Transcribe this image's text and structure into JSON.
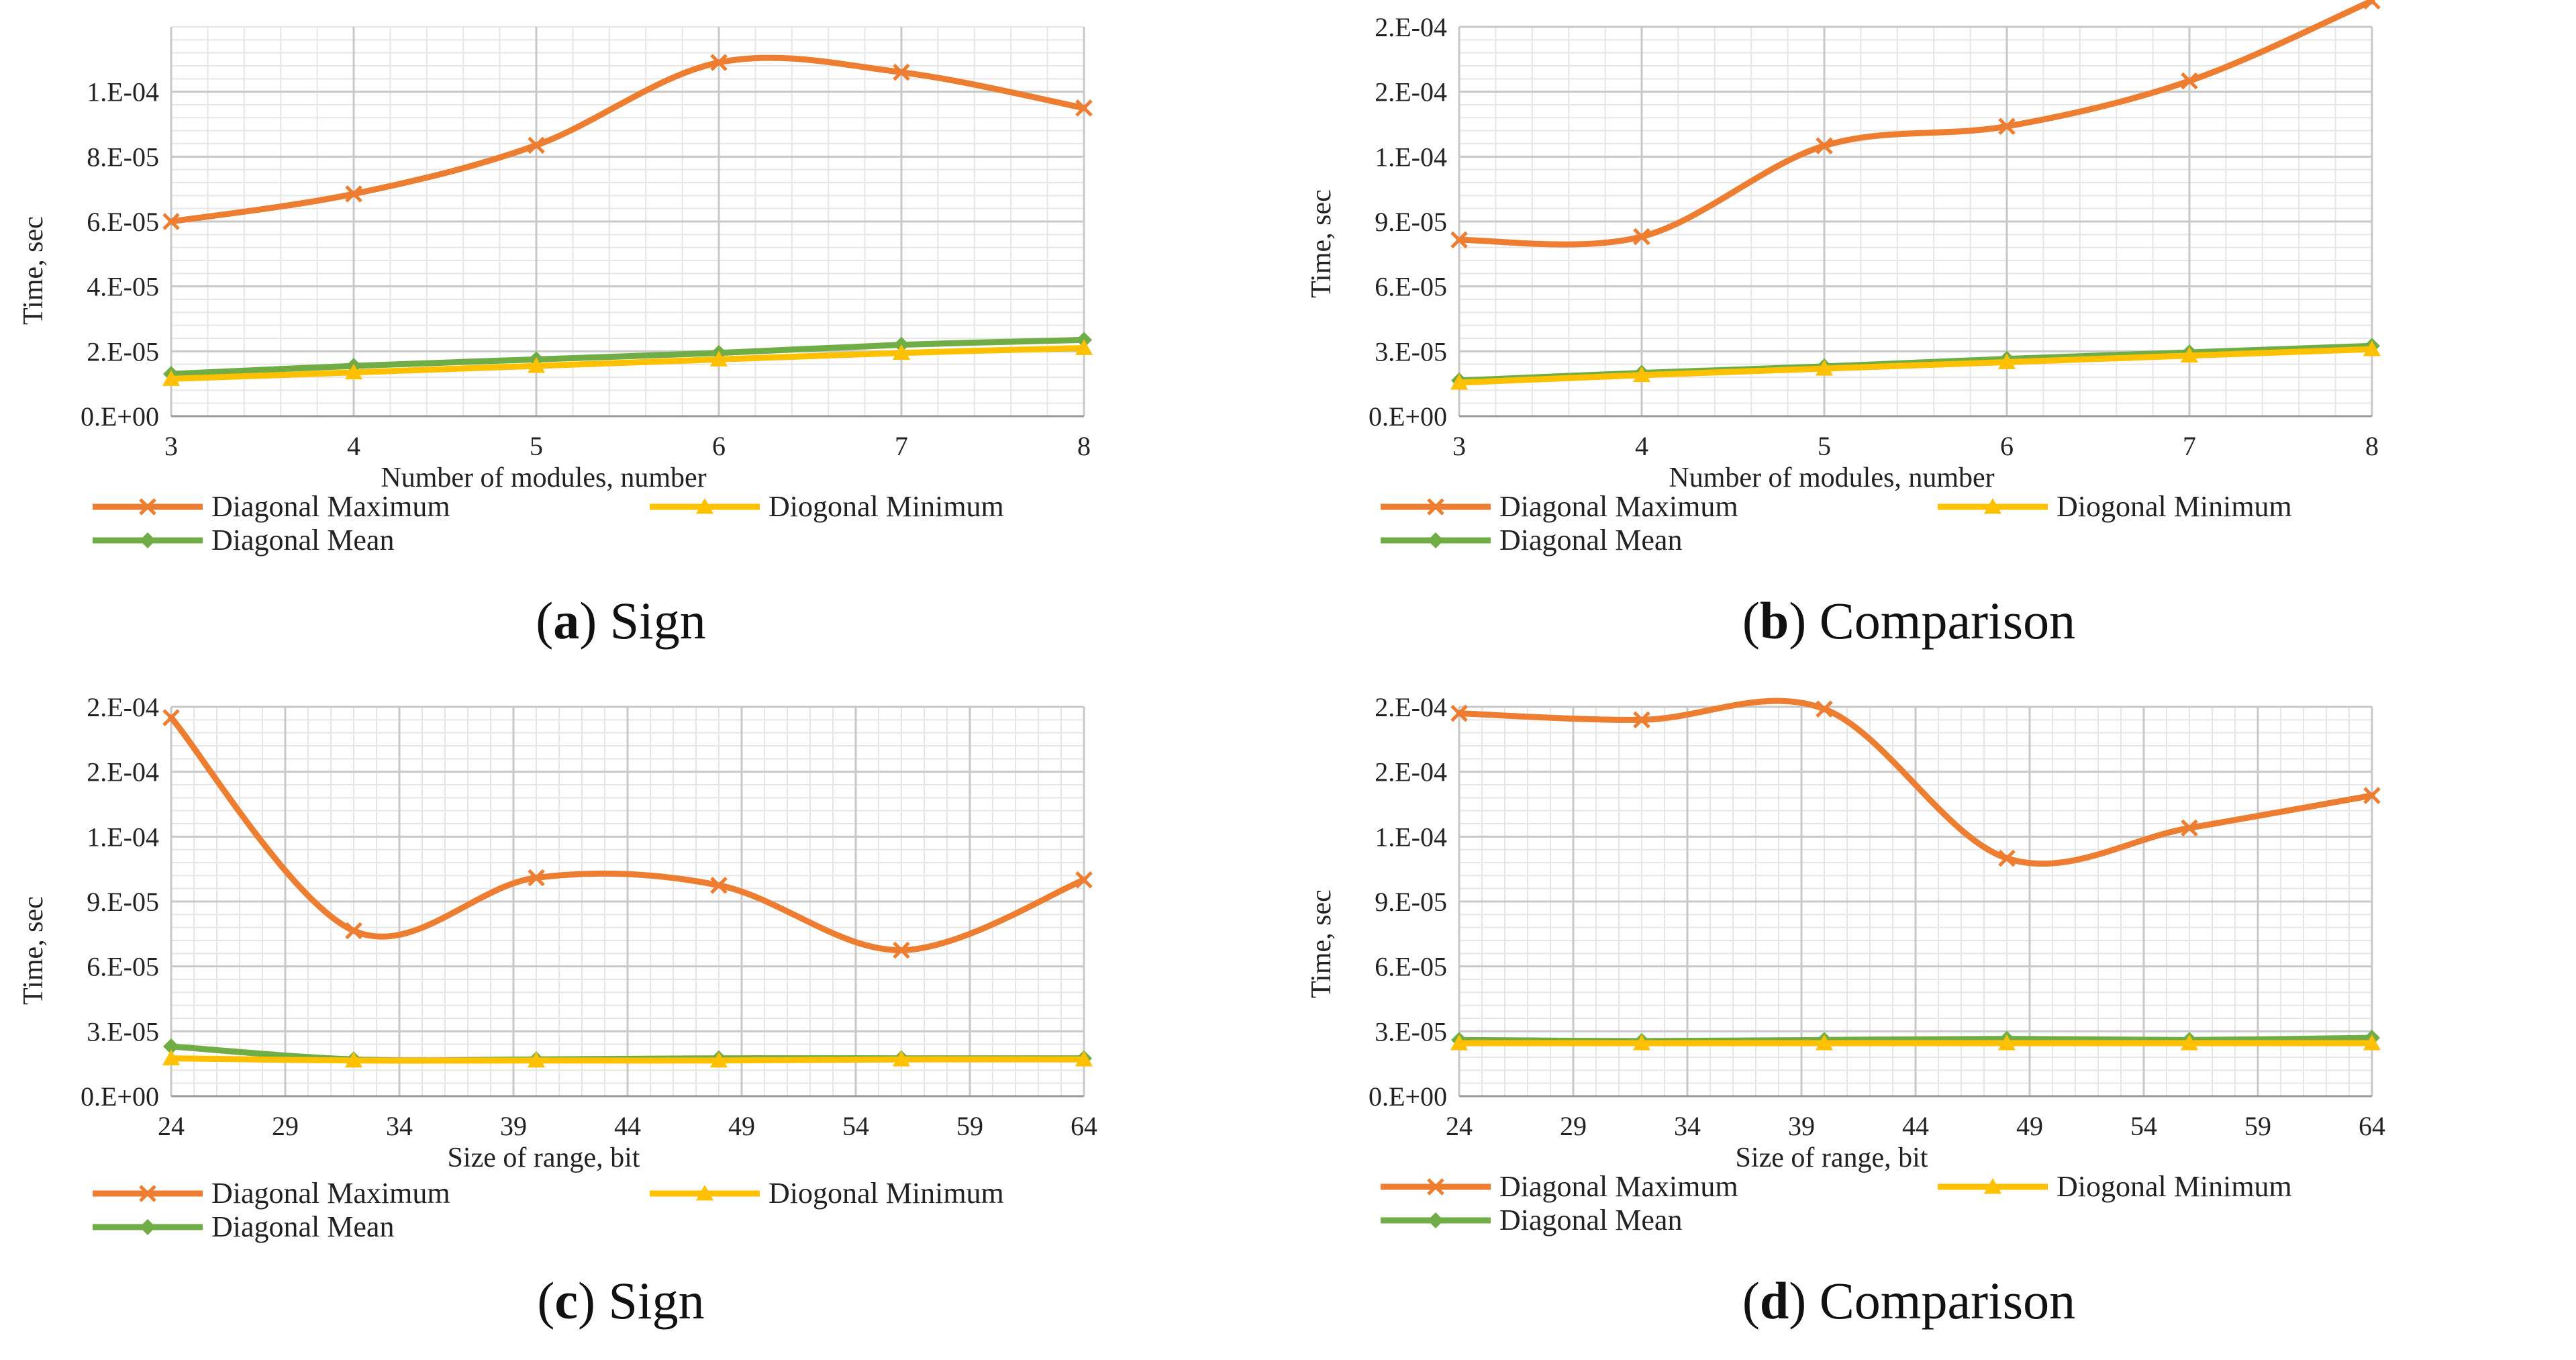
{
  "colors": {
    "max": "#ED7D31",
    "min": "#FFC000",
    "mean": "#70AD47",
    "grid_major": "#C8C8C8",
    "grid_minor": "#E6E6E6"
  },
  "chart_data": [
    {
      "type": "line",
      "caption_letter": "a",
      "caption_title": "Sign",
      "xlabel": "Number of modules, number",
      "ylabel": "Time, sec",
      "x": [
        3,
        4,
        5,
        6,
        7,
        8
      ],
      "xticks": [
        "3",
        "4",
        "5",
        "6",
        "7",
        "8"
      ],
      "xlim": [
        3,
        8
      ],
      "ylim": [
        0,
        0.00012
      ],
      "yticks": [
        0,
        2e-05,
        4e-05,
        6e-05,
        8e-05,
        0.0001
      ],
      "ytick_labels": [
        "0.E+00",
        "2.E-05",
        "4.E-05",
        "6.E-05",
        "8.E-05",
        "1.E-04"
      ],
      "series": [
        {
          "name": "Diagonal Maximum",
          "key": "max",
          "marker": "x",
          "values": [
            6e-05,
            6.85e-05,
            8.35e-05,
            0.000109,
            0.000106,
            9.5e-05
          ]
        },
        {
          "name": "Diogonal Minimum",
          "key": "min",
          "marker": "triangle",
          "values": [
            1.15e-05,
            1.35e-05,
            1.55e-05,
            1.75e-05,
            1.95e-05,
            2.1e-05
          ]
        },
        {
          "name": "Diagonal Mean",
          "key": "mean",
          "marker": "diamond",
          "values": [
            1.3e-05,
            1.55e-05,
            1.75e-05,
            1.95e-05,
            2.2e-05,
            2.35e-05
          ]
        }
      ]
    },
    {
      "type": "line",
      "caption_letter": "b",
      "caption_title": "Comparison",
      "xlabel": "Number of modules, number",
      "ylabel": "Time, sec",
      "x": [
        3,
        4,
        5,
        6,
        7,
        8
      ],
      "xticks": [
        "3",
        "4",
        "5",
        "6",
        "7",
        "8"
      ],
      "xlim": [
        3,
        8
      ],
      "ylim": [
        0,
        0.00018
      ],
      "yticks": [
        0,
        3e-05,
        6e-05,
        9e-05,
        0.00012,
        0.00015,
        0.00018
      ],
      "ytick_labels": [
        "0.E+00",
        "3.E-05",
        "6.E-05",
        "9.E-05",
        "1.E-04",
        "2.E-04",
        "2.E-04"
      ],
      "series": [
        {
          "name": "Diagonal Maximum",
          "key": "max",
          "marker": "x",
          "values": [
            8.15e-05,
            8.3e-05,
            0.000125,
            0.000134,
            0.000155,
            0.000192
          ]
        },
        {
          "name": "Diogonal Minimum",
          "key": "min",
          "marker": "triangle",
          "values": [
            1.55e-05,
            1.9e-05,
            2.2e-05,
            2.5e-05,
            2.8e-05,
            3.1e-05
          ]
        },
        {
          "name": "Diagonal Mean",
          "key": "mean",
          "marker": "diamond",
          "values": [
            1.65e-05,
            2e-05,
            2.3e-05,
            2.65e-05,
            2.95e-05,
            3.25e-05
          ]
        }
      ]
    },
    {
      "type": "line",
      "caption_letter": "c",
      "caption_title": "Sign",
      "xlabel": "Size of range, bit",
      "ylabel": "Time, sec",
      "x": [
        24,
        32,
        40,
        48,
        56,
        64
      ],
      "xticks": [
        "24",
        "29",
        "34",
        "39",
        "44",
        "49",
        "54",
        "59",
        "64"
      ],
      "xtick_values": [
        24,
        29,
        34,
        39,
        44,
        49,
        54,
        59,
        64
      ],
      "xlim": [
        24,
        64
      ],
      "ylim": [
        0,
        0.00018
      ],
      "yticks": [
        0,
        3e-05,
        6e-05,
        9e-05,
        0.00012,
        0.00015,
        0.00018
      ],
      "ytick_labels": [
        "0.E+00",
        "3.E-05",
        "6.E-05",
        "9.E-05",
        "1.E-04",
        "2.E-04",
        "2.E-04"
      ],
      "series": [
        {
          "name": "Diagonal Maximum",
          "key": "max",
          "marker": "x",
          "values": [
            0.000175,
            7.65e-05,
            0.000101,
            9.75e-05,
            6.75e-05,
            0.0001
          ]
        },
        {
          "name": "Diogonal Minimum",
          "key": "min",
          "marker": "triangle",
          "values": [
            1.75e-05,
            1.65e-05,
            1.65e-05,
            1.65e-05,
            1.7e-05,
            1.7e-05
          ]
        },
        {
          "name": "Diagonal Mean",
          "key": "mean",
          "marker": "diamond",
          "values": [
            2.3e-05,
            1.7e-05,
            1.7e-05,
            1.75e-05,
            1.75e-05,
            1.75e-05
          ]
        }
      ]
    },
    {
      "type": "line",
      "caption_letter": "d",
      "caption_title": "Comparison",
      "xlabel": "Size of range, bit",
      "ylabel": "Time, sec",
      "x": [
        24,
        32,
        40,
        48,
        56,
        64
      ],
      "xticks": [
        "24",
        "29",
        "34",
        "39",
        "44",
        "49",
        "54",
        "59",
        "64"
      ],
      "xtick_values": [
        24,
        29,
        34,
        39,
        44,
        49,
        54,
        59,
        64
      ],
      "xlim": [
        24,
        64
      ],
      "ylim": [
        0,
        0.00018
      ],
      "yticks": [
        0,
        3e-05,
        6e-05,
        9e-05,
        0.00012,
        0.00015,
        0.00018
      ],
      "ytick_labels": [
        "0.E+00",
        "3.E-05",
        "6.E-05",
        "9.E-05",
        "1.E-04",
        "2.E-04",
        "2.E-04"
      ],
      "series": [
        {
          "name": "Diagonal Maximum",
          "key": "max",
          "marker": "x",
          "values": [
            0.000177,
            0.000174,
            0.000179,
            0.00011,
            0.000124,
            0.000139
          ]
        },
        {
          "name": "Diogonal Minimum",
          "key": "min",
          "marker": "triangle",
          "values": [
            2.45e-05,
            2.45e-05,
            2.45e-05,
            2.45e-05,
            2.45e-05,
            2.45e-05
          ]
        },
        {
          "name": "Diagonal Mean",
          "key": "mean",
          "marker": "diamond",
          "values": [
            2.6e-05,
            2.55e-05,
            2.6e-05,
            2.65e-05,
            2.6e-05,
            2.7e-05
          ]
        }
      ]
    }
  ]
}
